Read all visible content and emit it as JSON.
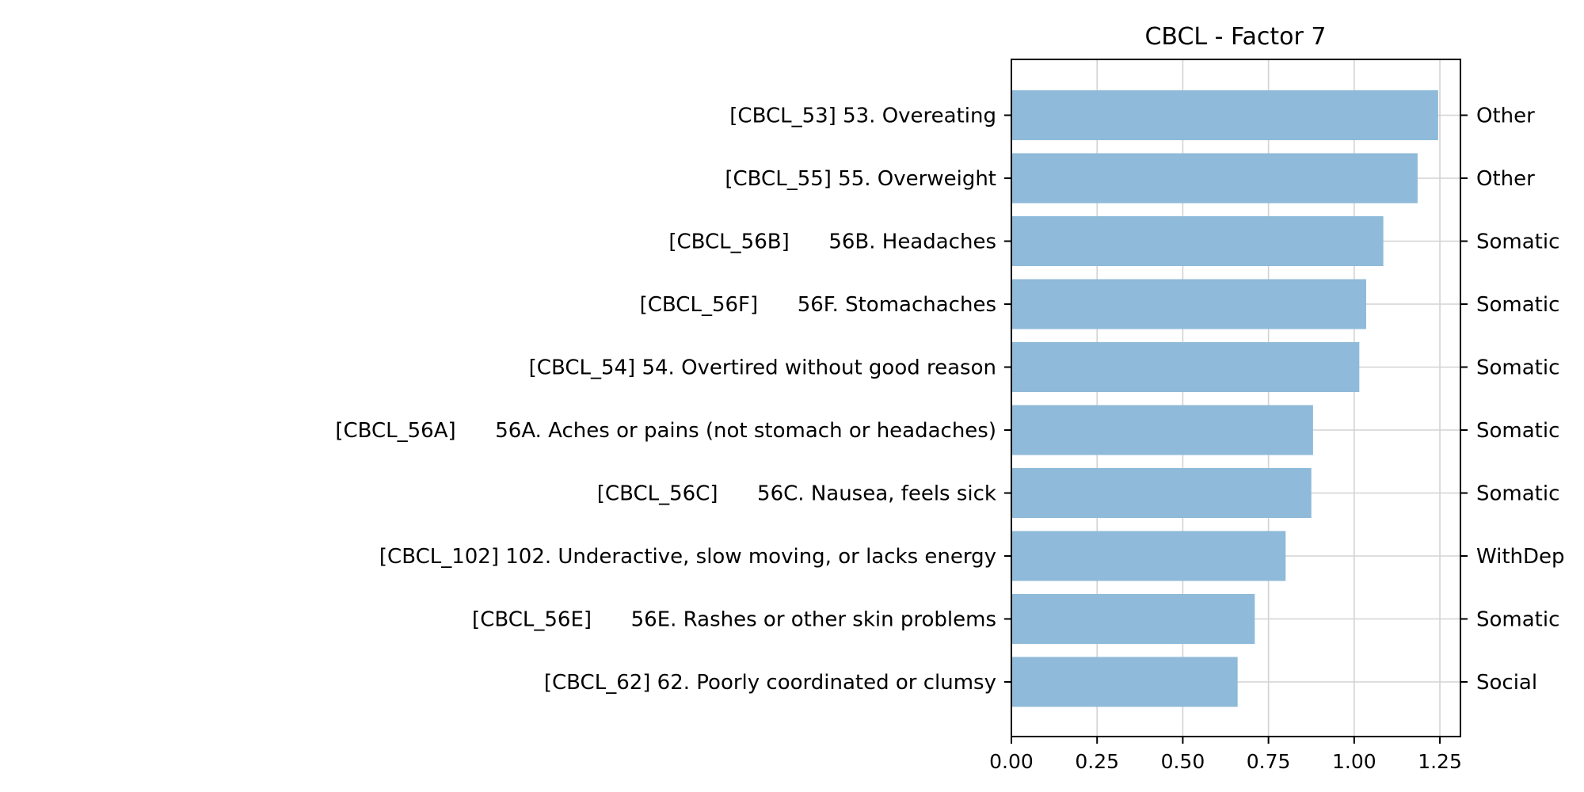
{
  "chart_data": {
    "type": "bar",
    "orientation": "horizontal",
    "title": "CBCL - Factor 7",
    "xlabel": "",
    "ylabel": "",
    "xlim": [
      0,
      1.31
    ],
    "xticks": [
      "0.00",
      "0.25",
      "0.50",
      "0.75",
      "1.00",
      "1.25"
    ],
    "grid": true,
    "categories": [
      "[CBCL_53] 53. Overeating",
      "[CBCL_55] 55. Overweight",
      "[CBCL_56B]      56B. Headaches",
      "[CBCL_56F]      56F. Stomachaches",
      "[CBCL_54] 54. Overtired without good reason",
      "[CBCL_56A]      56A. Aches or pains (not stomach or headaches)",
      "[CBCL_56C]      56C. Nausea, feels sick",
      "[CBCL_102] 102. Underactive, slow moving, or lacks energy",
      "[CBCL_56E]      56E. Rashes or other skin problems",
      "[CBCL_62] 62. Poorly coordinated or clumsy"
    ],
    "values": [
      1.245,
      1.185,
      1.085,
      1.035,
      1.015,
      0.88,
      0.875,
      0.8,
      0.71,
      0.66
    ],
    "right_labels": [
      "Other",
      "Other",
      "Somatic",
      "Somatic",
      "Somatic",
      "Somatic",
      "Somatic",
      "WithDep",
      "Somatic",
      "Social"
    ],
    "colors": {
      "bar": "#8fbad9",
      "grid": "#d3d3d3",
      "axis": "#000000"
    }
  }
}
